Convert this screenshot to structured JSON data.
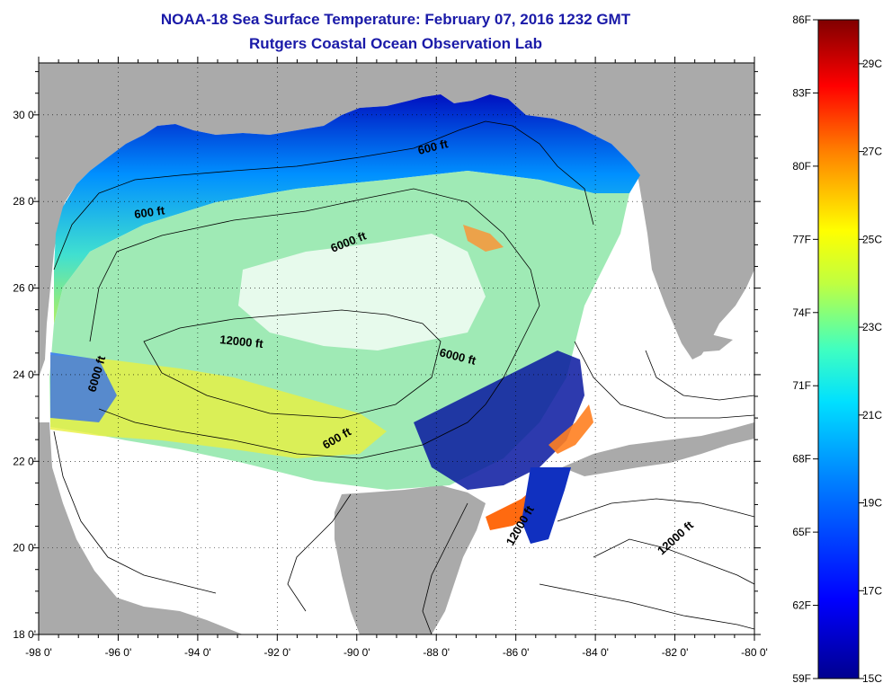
{
  "header": {
    "title": "NOAA-18 Sea Surface Temperature:  February 07, 2016 1232 GMT",
    "subtitle": "Rutgers Coastal Ocean Observation Lab"
  },
  "map": {
    "lon_labels": [
      "-98 0'",
      "-96 0'",
      "-94 0'",
      "-92 0'",
      "-90 0'",
      "-88 0'",
      "-86 0'",
      "-84 0'",
      "-82 0'",
      "-80 0'"
    ],
    "lat_labels": [
      "30 0'",
      "28 0'",
      "26 0'",
      "24 0'",
      "22 0'",
      "20 0'",
      "18 0'"
    ],
    "lon_range": [
      -98,
      -80
    ],
    "lat_range": [
      18,
      31.2
    ],
    "contour_labels": [
      {
        "text": "600 ft"
      },
      {
        "text": "600 ft"
      },
      {
        "text": "6000 ft"
      },
      {
        "text": "12000 ft"
      },
      {
        "text": "6000 ft"
      },
      {
        "text": "6000 ft"
      },
      {
        "text": "600 ft"
      },
      {
        "text": "12000 ft"
      },
      {
        "text": "12000 ft"
      }
    ],
    "land_color": "#aaaaaa"
  },
  "colorbar": {
    "fahrenheit_labels": [
      "86F",
      "83F",
      "80F",
      "77F",
      "74F",
      "71F",
      "68F",
      "65F",
      "62F",
      "59F"
    ],
    "celsius_labels": [
      "29C",
      "27C",
      "25C",
      "23C",
      "21C",
      "19C",
      "17C",
      "15C"
    ],
    "range_f": [
      59,
      86
    ],
    "range_c": [
      15,
      30
    ]
  }
}
